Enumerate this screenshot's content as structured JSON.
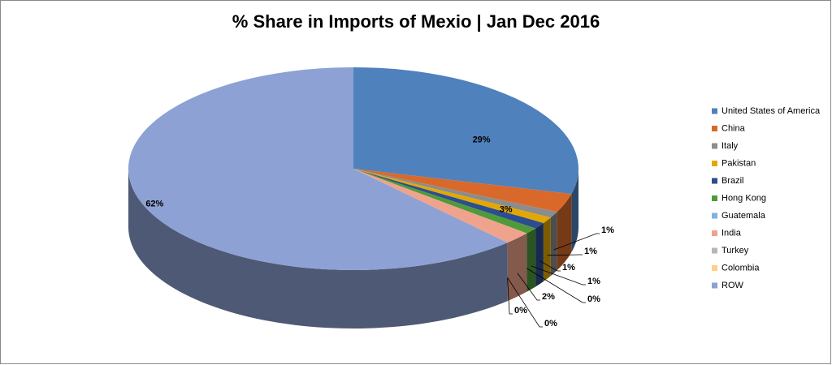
{
  "chart_data": {
    "type": "pie",
    "title": "% Share in Imports of Mexio | Jan Dec 2016",
    "categories": [
      "United States of America",
      "China",
      "Italy",
      "Pakistan",
      "Brazil",
      "Hong Kong",
      "Guatemala",
      "India",
      "Turkey",
      "Colombia",
      "ROW"
    ],
    "values": [
      29,
      3,
      1,
      1,
      1,
      1,
      0,
      2,
      0,
      0,
      62
    ],
    "value_labels": [
      "29%",
      "3%",
      "1%",
      "1%",
      "1%",
      "1%",
      "0%",
      "2%",
      "0%",
      "0%",
      "62%"
    ],
    "colors": [
      "#4f81bd",
      "#d9692a",
      "#8c8c8c",
      "#e3a800",
      "#2c4d8f",
      "#4f9a3a",
      "#7fb2e0",
      "#f0a38c",
      "#b7b7b7",
      "#ffd08a",
      "#8da1d4"
    ],
    "legend": "right"
  }
}
